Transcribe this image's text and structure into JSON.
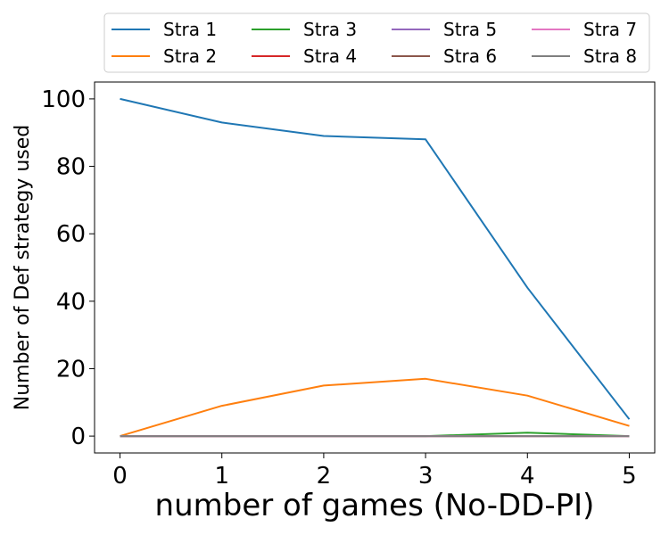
{
  "chart_data": {
    "type": "line",
    "title": "",
    "xlabel": "number of games (No-DD-PI)",
    "ylabel": "Number of Def strategy used",
    "x": [
      0,
      1,
      2,
      3,
      4,
      5
    ],
    "xlim": [
      -0.25,
      5.25
    ],
    "ylim": [
      -5,
      105
    ],
    "xticks": [
      0,
      1,
      2,
      3,
      4,
      5
    ],
    "yticks": [
      0,
      20,
      40,
      60,
      80,
      100
    ],
    "grid": false,
    "legend_position": "top",
    "series": [
      {
        "name": "Stra 1",
        "color": "#1f77b4",
        "values": [
          100,
          93,
          89,
          88,
          44,
          5
        ]
      },
      {
        "name": "Stra 2",
        "color": "#ff7f0e",
        "values": [
          0,
          9,
          15,
          17,
          12,
          3
        ]
      },
      {
        "name": "Stra 3",
        "color": "#2ca02c",
        "values": [
          0,
          0,
          0,
          0,
          1,
          0
        ]
      },
      {
        "name": "Stra 4",
        "color": "#d62728",
        "values": [
          0,
          0,
          0,
          0,
          0,
          0
        ]
      },
      {
        "name": "Stra 5",
        "color": "#9467bd",
        "values": [
          0,
          0,
          0,
          0,
          0,
          0
        ]
      },
      {
        "name": "Stra 6",
        "color": "#8c564b",
        "values": [
          0,
          0,
          0,
          0,
          0,
          0
        ]
      },
      {
        "name": "Stra 7",
        "color": "#e377c2",
        "values": [
          0,
          0,
          0,
          0,
          0,
          0
        ]
      },
      {
        "name": "Stra 8",
        "color": "#7f7f7f",
        "values": [
          0,
          0,
          0,
          0,
          0,
          0
        ]
      }
    ]
  }
}
